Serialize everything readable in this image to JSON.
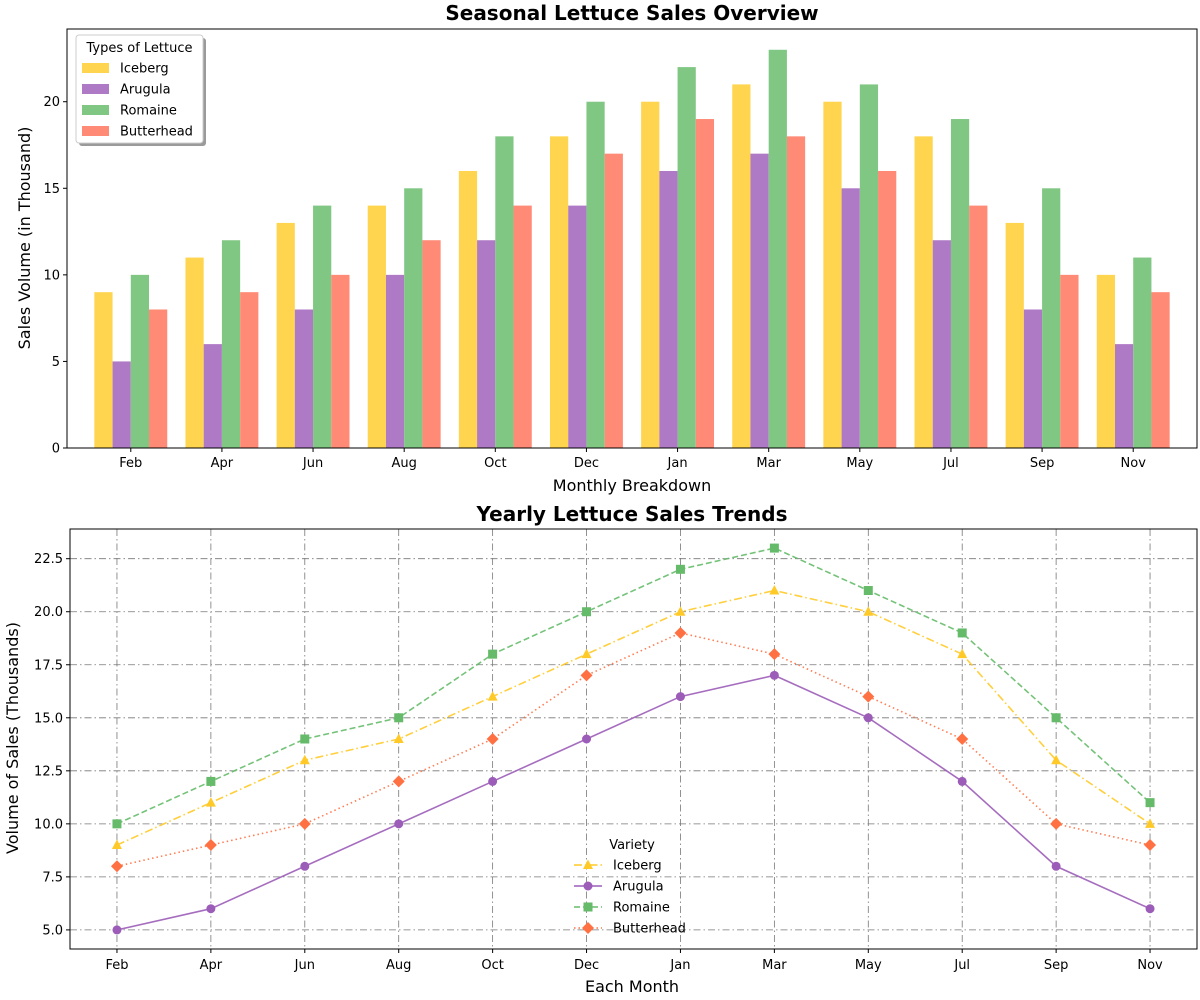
{
  "chart_data": [
    {
      "type": "bar",
      "title": "Seasonal Lettuce Sales Overview",
      "xlabel": "Monthly Breakdown",
      "ylabel": "Sales Volume (in Thousand)",
      "categories": [
        "Feb",
        "Apr",
        "Jun",
        "Aug",
        "Oct",
        "Dec",
        "Jan",
        "Mar",
        "May",
        "Jul",
        "Sep",
        "Nov"
      ],
      "ylim": [
        0,
        24.2
      ],
      "yticks": [
        0,
        5,
        10,
        15,
        20
      ],
      "grid": false,
      "legend": {
        "title": "Types of Lettuce",
        "placement": "top-left"
      },
      "series": [
        {
          "name": "Iceberg",
          "color": "#FFD54F",
          "values": [
            9,
            11,
            13,
            14,
            16,
            18,
            20,
            21,
            20,
            18,
            13,
            10
          ]
        },
        {
          "name": "Arugula",
          "color": "#AF7AC5",
          "values": [
            5,
            6,
            8,
            10,
            12,
            14,
            16,
            17,
            15,
            12,
            8,
            6
          ]
        },
        {
          "name": "Romaine",
          "color": "#81C784",
          "values": [
            10,
            12,
            14,
            15,
            18,
            20,
            22,
            23,
            21,
            19,
            15,
            11
          ]
        },
        {
          "name": "Butterhead",
          "color": "#FF8A75",
          "values": [
            8,
            9,
            10,
            12,
            14,
            17,
            19,
            18,
            16,
            14,
            10,
            9
          ]
        }
      ]
    },
    {
      "type": "line",
      "title": "Yearly Lettuce Sales Trends",
      "xlabel": "Each Month",
      "ylabel": "Volume of Sales (Thousands)",
      "categories": [
        "Feb",
        "Apr",
        "Jun",
        "Aug",
        "Oct",
        "Dec",
        "Jan",
        "Mar",
        "May",
        "Jul",
        "Sep",
        "Nov"
      ],
      "ylim": [
        4.1,
        23.9
      ],
      "yticks": [
        5.0,
        7.5,
        10.0,
        12.5,
        15.0,
        17.5,
        20.0,
        22.5
      ],
      "grid": true,
      "legend": {
        "title": "Variety",
        "placement": "lower-center"
      },
      "series": [
        {
          "name": "Iceberg",
          "color": "#FFCA28",
          "marker": "triangle",
          "linestyle": "dashdot",
          "values": [
            9,
            11,
            13,
            14,
            16,
            18,
            20,
            21,
            20,
            18,
            13,
            10
          ]
        },
        {
          "name": "Arugula",
          "color": "#9C5DB8",
          "marker": "circle",
          "linestyle": "solid",
          "values": [
            5,
            6,
            8,
            10,
            12,
            14,
            16,
            17,
            15,
            12,
            8,
            6
          ]
        },
        {
          "name": "Romaine",
          "color": "#66BB6A",
          "marker": "square",
          "linestyle": "dashed",
          "values": [
            10,
            12,
            14,
            15,
            18,
            20,
            22,
            23,
            21,
            19,
            15,
            11
          ]
        },
        {
          "name": "Butterhead",
          "color": "#FF7043",
          "marker": "diamond",
          "linestyle": "dotted",
          "values": [
            8,
            9,
            10,
            12,
            14,
            17,
            19,
            18,
            16,
            14,
            10,
            9
          ]
        }
      ]
    }
  ]
}
